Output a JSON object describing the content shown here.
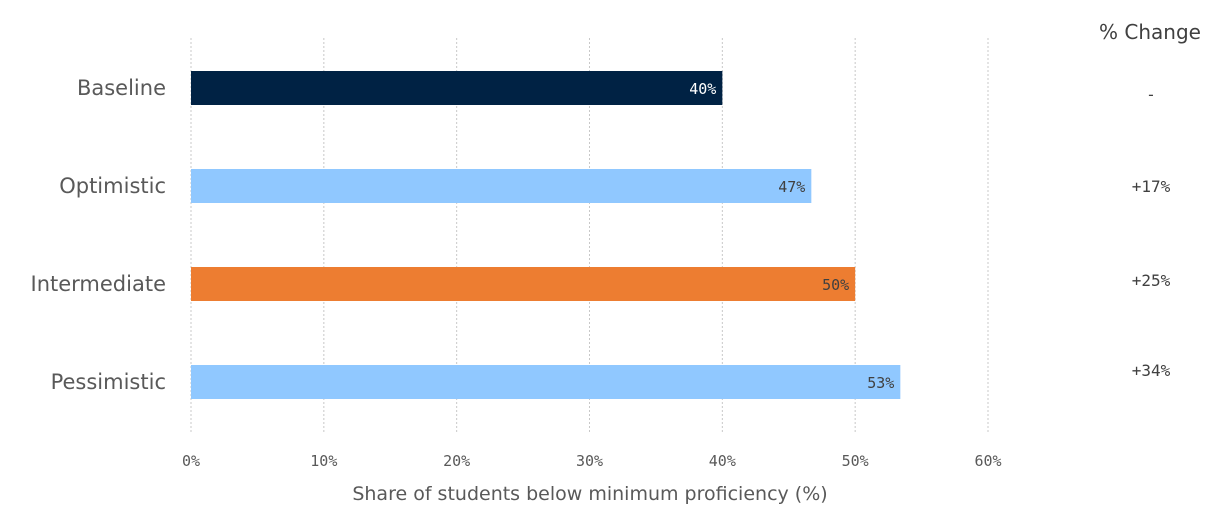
{
  "chart_data": {
    "type": "bar",
    "orientation": "horizontal",
    "categories": [
      "Baseline",
      "Optimistic",
      "Intermediate",
      "Pessimistic"
    ],
    "values": [
      40,
      46.7,
      50,
      53.4
    ],
    "data_labels": [
      "40%",
      "47%",
      "50%",
      "53%"
    ],
    "bar_colors": [
      "#002244",
      "#90C8FF",
      "#ED7D31",
      "#90C8FF"
    ],
    "data_label_colors": [
      "#ffffff",
      "#404040",
      "#404040",
      "#404040"
    ],
    "xlabel": "Share of students below minimum proficiency (%)",
    "xlim": [
      0,
      60
    ],
    "xticks": [
      0,
      10,
      20,
      30,
      40,
      50,
      60
    ],
    "xtick_labels": [
      "0%",
      "10%",
      "20%",
      "30%",
      "40%",
      "50%",
      "60%"
    ],
    "grid": true,
    "side_column": {
      "header": "% Change",
      "values": [
        "-",
        "+17%",
        "+25%",
        "+34%"
      ]
    }
  }
}
